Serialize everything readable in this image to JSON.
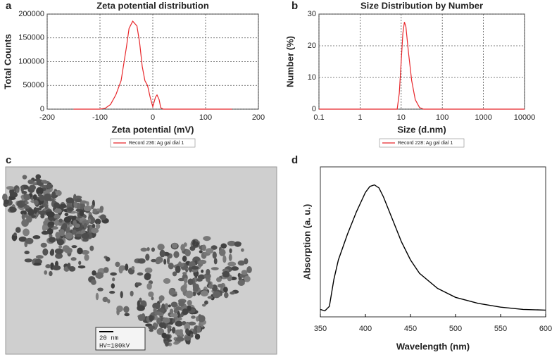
{
  "panel_labels": [
    "a",
    "b",
    "c",
    "d"
  ],
  "micrograph": {
    "scale_bar": "20 nm",
    "voltage": "HV=100kV"
  },
  "chart_data": [
    {
      "type": "line",
      "title": "Zeta potential distribution",
      "xlabel": "Zeta potential (mV)",
      "ylabel": "Total Counts",
      "x": [
        -150,
        -100,
        -90,
        -80,
        -70,
        -60,
        -50,
        -45,
        -38,
        -30,
        -25,
        -20,
        -15,
        -10,
        -5,
        0,
        5,
        8,
        12,
        15,
        20,
        150
      ],
      "series": [
        {
          "name": "Record 236: Ag gal dial 1",
          "color": "#e8262a",
          "values": [
            0,
            0,
            2000,
            10000,
            30000,
            60000,
            130000,
            170000,
            185000,
            175000,
            140000,
            90000,
            60000,
            50000,
            25000,
            5000,
            25000,
            30000,
            20000,
            3000,
            0,
            0
          ]
        }
      ],
      "xlim": [
        -200,
        200
      ],
      "xticks": [
        -200,
        -100,
        0,
        100,
        200
      ],
      "ylim": [
        0,
        200000
      ],
      "yticks": [
        0,
        50000,
        100000,
        150000,
        200000
      ],
      "grid": true,
      "legend": "bottom"
    },
    {
      "type": "line",
      "title": "Size Distribution by Number",
      "xlabel": "Size (d.nm)",
      "ylabel": "Number (%)",
      "log_x": true,
      "x": [
        0.1,
        8,
        9,
        10,
        11,
        12,
        13,
        15,
        18,
        22,
        28,
        35,
        10000
      ],
      "series": [
        {
          "name": "Record 228: Ag gal dial 1",
          "color": "#e8262a",
          "values": [
            0,
            0,
            5,
            15,
            24,
            27.5,
            26,
            18,
            9,
            3,
            0.5,
            0,
            0
          ]
        }
      ],
      "xlim": [
        0.1,
        10000
      ],
      "xticks": [
        0.1,
        1,
        10,
        100,
        1000,
        10000
      ],
      "ylim": [
        0,
        30
      ],
      "yticks": [
        0,
        10,
        20,
        30
      ],
      "grid": true,
      "legend": "bottom"
    },
    {
      "type": "line",
      "xlabel": "Wavelength (nm)",
      "ylabel": "Absorption (a. u.)",
      "x": [
        350,
        355,
        360,
        365,
        370,
        380,
        390,
        400,
        405,
        410,
        415,
        420,
        430,
        440,
        450,
        460,
        480,
        500,
        525,
        550,
        575,
        600
      ],
      "series": [
        {
          "color": "#000000",
          "values": [
            0.05,
            0.04,
            0.07,
            0.25,
            0.38,
            0.55,
            0.7,
            0.83,
            0.87,
            0.88,
            0.86,
            0.8,
            0.65,
            0.5,
            0.38,
            0.29,
            0.19,
            0.13,
            0.09,
            0.065,
            0.05,
            0.045
          ]
        }
      ],
      "xlim": [
        350,
        600
      ],
      "xticks": [
        350,
        400,
        450,
        500,
        550,
        600
      ],
      "ylim": [
        0,
        1
      ],
      "grid": false
    }
  ]
}
